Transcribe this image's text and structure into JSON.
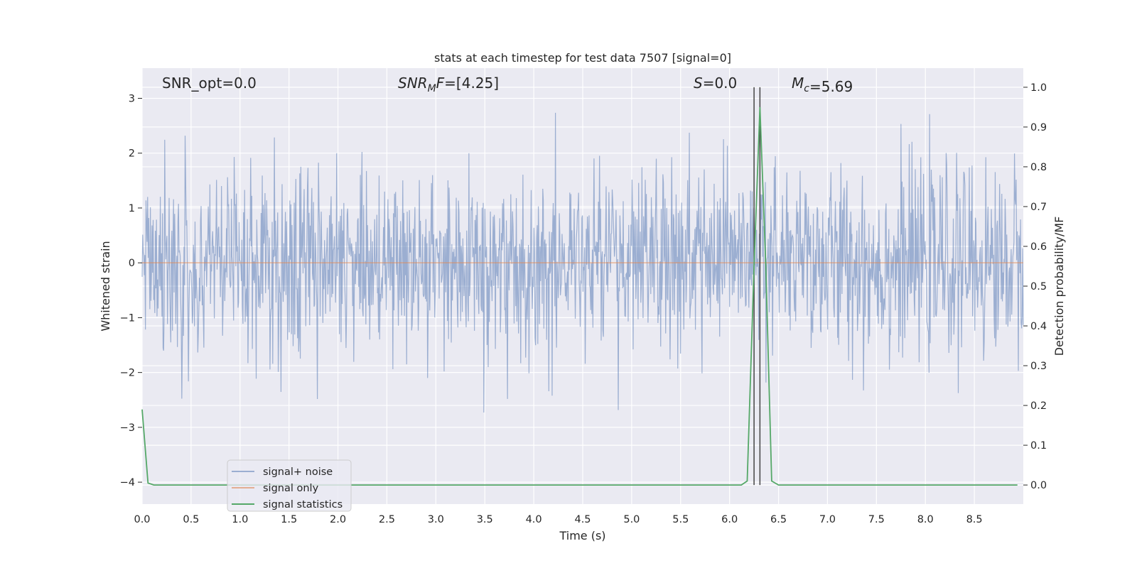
{
  "chart_data": {
    "type": "line",
    "title": "stats at each timestep for test data 7507 [signal=0]",
    "xlabel": "Time (s)",
    "ylabel_left": "Whitened strain",
    "ylabel_right": "Detection probability/MF",
    "xlim": [
      0.0,
      9.0
    ],
    "ylim_left": [
      -4.4,
      3.55
    ],
    "ylim_right": [
      -0.048,
      1.048
    ],
    "x_ticks": [
      0.0,
      0.5,
      1.0,
      1.5,
      2.0,
      2.5,
      3.0,
      3.5,
      4.0,
      4.5,
      5.0,
      5.5,
      6.0,
      6.5,
      7.0,
      7.5,
      8.0,
      8.5
    ],
    "x_tick_labels": [
      "0.0",
      "0.5",
      "1.0",
      "1.5",
      "2.0",
      "2.5",
      "3.0",
      "3.5",
      "4.0",
      "4.5",
      "5.0",
      "5.5",
      "6.0",
      "6.5",
      "7.0",
      "7.5",
      "8.0",
      "8.5"
    ],
    "y_left_ticks": [
      3,
      2,
      1,
      0,
      -1,
      -2,
      -3,
      -4
    ],
    "y_left_tick_labels": [
      "3",
      "2",
      "1",
      "0",
      "−1",
      "−2",
      "−3",
      "−4"
    ],
    "y_right_ticks": [
      1.0,
      0.9,
      0.8,
      0.7,
      0.6,
      0.5,
      0.4,
      0.3,
      0.2,
      0.1,
      0.0
    ],
    "y_right_tick_labels": [
      "1.0",
      "0.9",
      "0.8",
      "0.7",
      "0.6",
      "0.5",
      "0.4",
      "0.3",
      "0.2",
      "0.1",
      "0.0"
    ],
    "grid": true,
    "background_color": "#eaeaf2",
    "annotations": [
      {
        "prefix": "SNR_opt",
        "prefix_italic": false,
        "value": "=0.0"
      },
      {
        "prefix": "SNR",
        "sub": "M",
        "suffix": "F",
        "prefix_italic": true,
        "value": "=[4.25]"
      },
      {
        "prefix": "S",
        "prefix_italic": true,
        "value": "=0.0"
      },
      {
        "prefix": "M",
        "sub": "c",
        "prefix_italic": true,
        "value": "=5.69"
      }
    ],
    "series": [
      {
        "name": "signal+ noise",
        "color": "#4c72b0",
        "opacity": 0.5,
        "description": "whitened strain noise, approx. Gaussian with std ~0.85 over 0-9 s",
        "sample_count": 1600,
        "std": 0.85
      },
      {
        "name": "signal only",
        "color": "#dd8452",
        "opacity": 0.6,
        "x": [
          0.0,
          9.0
        ],
        "y": [
          0.0,
          0.0
        ]
      },
      {
        "name": "signal statistics",
        "color": "#55a868",
        "axis": "right",
        "x": [
          0.0,
          0.06,
          0.12,
          6.12,
          6.18,
          6.25,
          6.31,
          6.37,
          6.43,
          6.5,
          8.94
        ],
        "y": [
          0.19,
          0.005,
          0.0,
          0.0,
          0.01,
          0.55,
          0.95,
          0.55,
          0.01,
          0.0,
          0.0
        ]
      }
    ],
    "vertical_lines": [
      {
        "x": 6.25,
        "color": "#444444"
      },
      {
        "x": 6.31,
        "color": "#444444"
      }
    ],
    "legend": {
      "position": "lower-left",
      "entries": [
        "signal+ noise",
        "signal only",
        "signal statistics"
      ]
    }
  }
}
